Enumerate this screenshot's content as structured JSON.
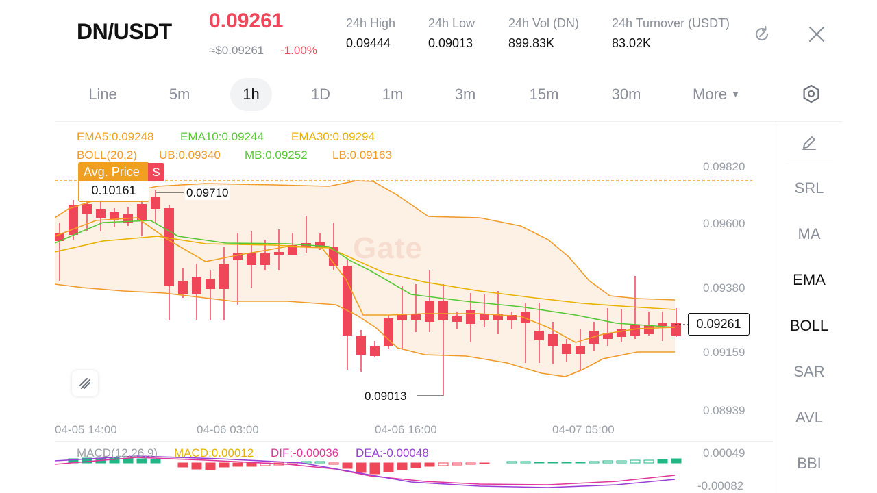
{
  "header": {
    "pair": "DN/USDT",
    "last_price": "0.09261",
    "usd_price": "≈$0.09261",
    "change": "-1.00%",
    "stats": [
      {
        "label": "24h  High",
        "value": "0.09444"
      },
      {
        "label": "24h  Low",
        "value": "0.09013"
      },
      {
        "label": "24h  Vol (DN)",
        "value": "899.83K"
      },
      {
        "label": "24h  Turnover (USDT)",
        "value": "83.02K"
      }
    ],
    "icons": {
      "refresh": "refresh-icon",
      "close": "close-icon"
    }
  },
  "tabs": {
    "items": [
      "Line",
      "5m",
      "1h",
      "1D",
      "1m",
      "3m",
      "15m",
      "30m"
    ],
    "active": "1h",
    "more": "More"
  },
  "sidebar": {
    "items": [
      "SRL",
      "MA",
      "EMA",
      "BOLL",
      "SAR",
      "AVL",
      "BBI"
    ],
    "active": [
      "EMA",
      "BOLL"
    ]
  },
  "indicators": {
    "ema": [
      "EMA5:0.09248",
      "EMA10:0.09244",
      "EMA30:0.09294"
    ],
    "boll": [
      "BOLL(20,2)",
      "UB:0.09340",
      "MB:0.09252",
      "LB:0.09163"
    ],
    "macd": [
      "MACD(12,26,9)",
      "MACD:0.00012",
      "DIF:-0.00036",
      "DEA:-0.00048"
    ]
  },
  "chart": {
    "y_labels": [
      "0.09820",
      "0.09600",
      "0.09380",
      "0.09159",
      "0.08939"
    ],
    "x_labels": [
      "04-05 14:00",
      "04-06 03:00",
      "04-06 16:00",
      "04-07 05:00"
    ],
    "current_price": "0.09261",
    "avg_price_label": "Avg. Price",
    "avg_price_value": "0.10161",
    "side_badge": "S",
    "high_marker": "0.09710",
    "low_marker": "0.09013",
    "watermark": "Gate",
    "macd_y_labels": [
      "0.00049",
      "-0.00082"
    ]
  },
  "colors": {
    "up": "#1fb783",
    "down": "#f0465a",
    "ema5": "#f0a020",
    "ema10": "#56c835",
    "ema30": "#e8b100",
    "boll": "#f09a2a",
    "dif": "#e0359a",
    "dea": "#9a3fd6",
    "accent": "#f0465a"
  }
}
